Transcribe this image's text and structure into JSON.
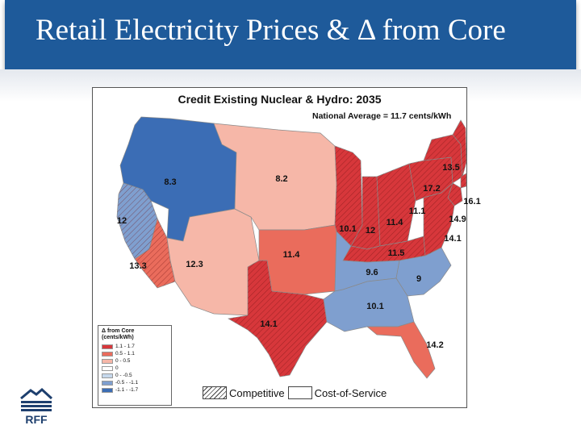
{
  "header": {
    "title": "Retail Electricity Prices & Δ from Core"
  },
  "map": {
    "title": "Credit Existing Nuclear & Hydro: 2035",
    "national_average": "National Average = 11.7 cents/kWh",
    "regions": [
      {
        "id": "northwest",
        "price": "8.3",
        "category": "-1.1 - -1.7",
        "market": "cost-of-service"
      },
      {
        "id": "northern-california",
        "price": "12",
        "category": "-0.5 - -1.1",
        "market": "competitive"
      },
      {
        "id": "southern-california",
        "price": "13.3",
        "category": "0.5 - 1.1",
        "market": "competitive"
      },
      {
        "id": "southwest",
        "price": "12.3",
        "category": "0 - 0.5",
        "market": "cost-of-service"
      },
      {
        "id": "northern-plains",
        "price": "8.2",
        "category": "0 - 0.5",
        "market": "cost-of-service"
      },
      {
        "id": "southwest-power-pool",
        "price": "11.4",
        "category": "0.5 - 1.1",
        "market": "cost-of-service"
      },
      {
        "id": "texas",
        "price": "14.1",
        "category": "1.1 - 1.7",
        "market": "competitive"
      },
      {
        "id": "illinois",
        "price": "10.1",
        "category": "1.1 - 1.7",
        "market": "competitive"
      },
      {
        "id": "indiana",
        "price": "12",
        "category": "1.1 - 1.7",
        "market": "competitive"
      },
      {
        "id": "ohio",
        "price": "11.4",
        "category": "1.1 - 1.7",
        "market": "competitive"
      },
      {
        "id": "kentucky-area",
        "price": "11.5",
        "category": "1.1 - 1.7",
        "market": "competitive"
      },
      {
        "id": "tennessee-valley",
        "price": "9.6",
        "category": "-0.5 - -1.1",
        "market": "cost-of-service"
      },
      {
        "id": "carolinas",
        "price": "9",
        "category": "-0.5 - -1.1",
        "market": "cost-of-service"
      },
      {
        "id": "southeast",
        "price": "10.1",
        "category": "-0.5 - -1.1",
        "market": "cost-of-service"
      },
      {
        "id": "florida",
        "price": "14.2",
        "category": "0.5 - 1.1",
        "market": "cost-of-service"
      },
      {
        "id": "pennsylvania",
        "price": "11.1",
        "category": "1.1 - 1.7",
        "market": "competitive"
      },
      {
        "id": "new-york",
        "price": "17.2",
        "category": "1.1 - 1.7",
        "market": "competitive"
      },
      {
        "id": "new-england",
        "price": "13.5",
        "category": "1.1 - 1.7",
        "market": "competitive"
      },
      {
        "id": "connecticut",
        "price": "16.1",
        "category": "1.1 - 1.7",
        "market": "competitive"
      },
      {
        "id": "new-jersey",
        "price": "14.9",
        "category": "1.1 - 1.7",
        "market": "competitive"
      },
      {
        "id": "mid-atlantic",
        "price": "14.1",
        "category": "1.1 - 1.7",
        "market": "competitive"
      }
    ]
  },
  "legend": {
    "title_line1": "Δ from Core",
    "title_line2": "(cents/kWh)",
    "items": [
      {
        "label": "1.1 - 1.7",
        "color": "#d7373b"
      },
      {
        "label": "0.5 - 1.1",
        "color": "#ea6c5c"
      },
      {
        "label": "0 - 0.5",
        "color": "#f6b7a8"
      },
      {
        "label": "0",
        "color": "#ffffff"
      },
      {
        "label": "0 - -0.5",
        "color": "#c6d8ec"
      },
      {
        "label": "-0.5 - -1.1",
        "color": "#7f9fcf"
      },
      {
        "label": "-1.1 - -1.7",
        "color": "#3b6db5"
      }
    ]
  },
  "market_types": {
    "competitive": "Competitive",
    "cost_of_service": "Cost-of-Service"
  },
  "logo": {
    "text": "RFF"
  }
}
